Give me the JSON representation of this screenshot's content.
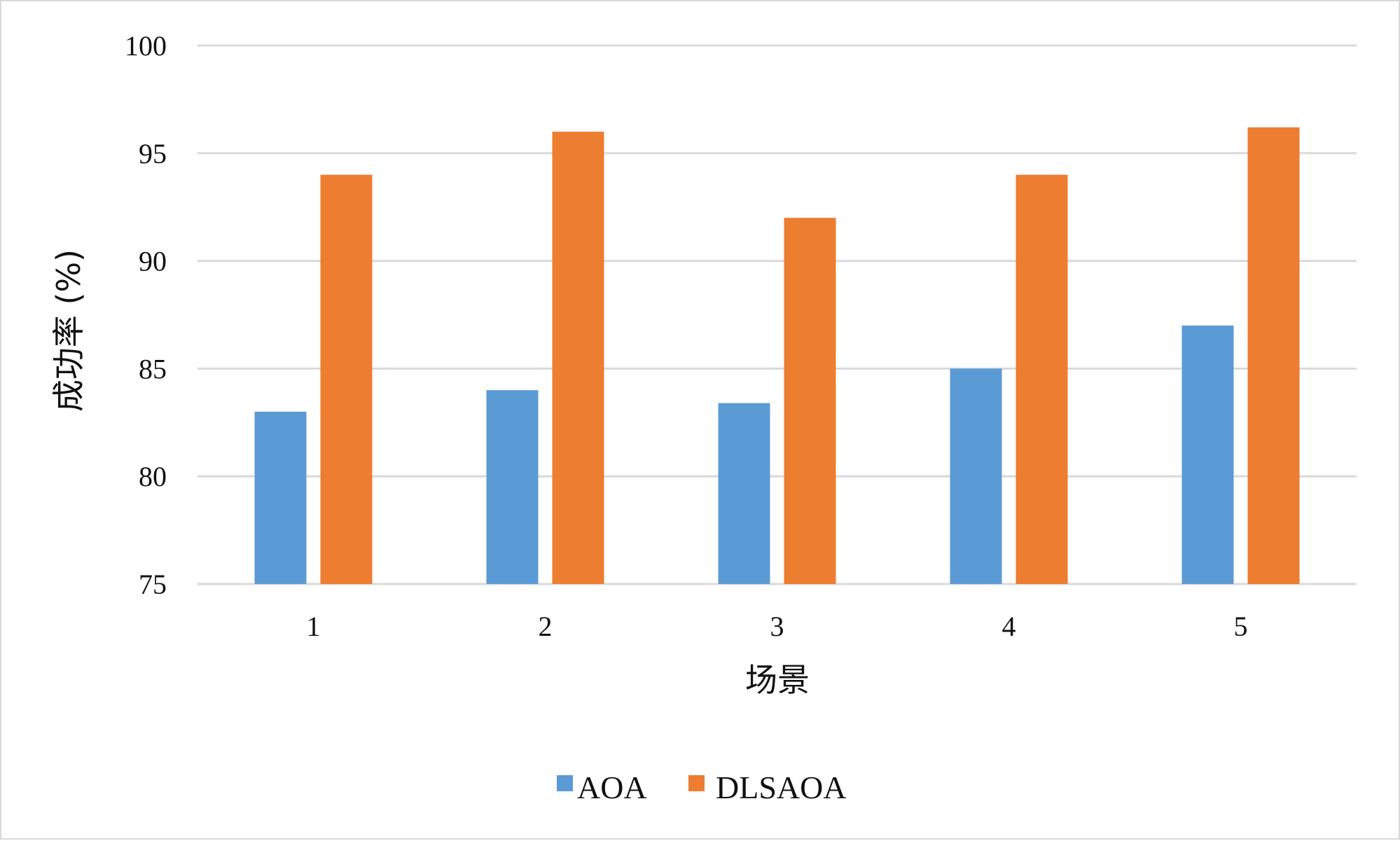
{
  "chart_data": {
    "type": "bar",
    "title": "",
    "xlabel": "场景",
    "ylabel": "成功率 (%)",
    "categories": [
      "1",
      "2",
      "3",
      "4",
      "5"
    ],
    "series": [
      {
        "name": "AOA",
        "color": "#5b9bd5",
        "values": [
          83.0,
          84.0,
          83.4,
          85.0,
          87.0
        ]
      },
      {
        "name": "DLSAOA",
        "color": "#ed7d31",
        "values": [
          94.0,
          96.0,
          92.0,
          94.0,
          96.2
        ]
      }
    ],
    "ylim": [
      75,
      100
    ],
    "yticks": [
      75,
      80,
      85,
      90,
      95,
      100
    ],
    "grid": true,
    "legend": "bottom-center"
  }
}
